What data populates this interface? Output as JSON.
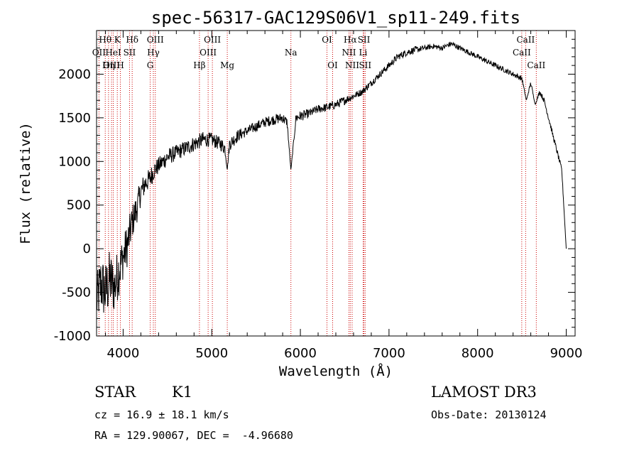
{
  "chart_data": {
    "type": "line",
    "title": "spec-56317-GAC129S06V1_sp11-249.fits",
    "xlabel": "Wavelength (Å)",
    "ylabel": "Flux (relative)",
    "xlim": [
      3700,
      9100
    ],
    "ylim": [
      -1000,
      2500
    ],
    "x_ticks": [
      4000,
      5000,
      6000,
      7000,
      8000,
      9000
    ],
    "y_ticks": [
      -1000,
      -500,
      0,
      500,
      1000,
      1500,
      2000
    ],
    "line_color": "#000000",
    "marker_color": "#cc0000",
    "series": [
      {
        "name": "flux",
        "x": [
          3700,
          3750,
          3800,
          3850,
          3900,
          3950,
          4000,
          4050,
          4100,
          4150,
          4200,
          4250,
          4300,
          4350,
          4400,
          4450,
          4500,
          4600,
          4700,
          4800,
          4900,
          5000,
          5100,
          5150,
          5175,
          5200,
          5300,
          5400,
          5500,
          5600,
          5700,
          5800,
          5850,
          5893,
          5950,
          6000,
          6100,
          6200,
          6300,
          6400,
          6500,
          6600,
          6700,
          6800,
          6900,
          7000,
          7100,
          7200,
          7300,
          7400,
          7500,
          7600,
          7700,
          7800,
          7900,
          8000,
          8100,
          8200,
          8300,
          8400,
          8500,
          8550,
          8600,
          8650,
          8700,
          8750,
          8800,
          8850,
          8900,
          8950,
          9000
        ],
        "y": [
          -600,
          -400,
          -500,
          -350,
          -450,
          -250,
          -100,
          50,
          300,
          450,
          650,
          750,
          800,
          900,
          950,
          1000,
          1050,
          1100,
          1150,
          1200,
          1250,
          1250,
          1200,
          1150,
          900,
          1200,
          1300,
          1350,
          1400,
          1450,
          1480,
          1500,
          1450,
          900,
          1500,
          1520,
          1550,
          1600,
          1620,
          1650,
          1700,
          1750,
          1800,
          1900,
          2000,
          2100,
          2200,
          2250,
          2280,
          2300,
          2320,
          2300,
          2350,
          2300,
          2250,
          2200,
          2150,
          2100,
          2050,
          2000,
          1950,
          1700,
          1900,
          1650,
          1800,
          1700,
          1500,
          1300,
          1100,
          900,
          0
        ],
        "noise": [
          300,
          350,
          350,
          350,
          300,
          300,
          250,
          250,
          200,
          180,
          150,
          130,
          120,
          110,
          100,
          100,
          100,
          90,
          90,
          90,
          90,
          80,
          80,
          80,
          0,
          80,
          70,
          60,
          60,
          60,
          60,
          60,
          50,
          0,
          60,
          60,
          50,
          50,
          50,
          50,
          50,
          40,
          40,
          40,
          40,
          40,
          40,
          40,
          40,
          30,
          30,
          30,
          30,
          30,
          30,
          30,
          30,
          30,
          30,
          30,
          30,
          0,
          30,
          0,
          30,
          30,
          30,
          30,
          30,
          30,
          0
        ]
      }
    ],
    "annotations": [
      {
        "label": "Hθ",
        "wavelength": 3798,
        "row": 1
      },
      {
        "label": "OII",
        "wavelength": 3727,
        "row": 2
      },
      {
        "label": "OIII",
        "wavelength": 3869,
        "row": 3
      },
      {
        "label": "K",
        "wavelength": 3934,
        "row": 1
      },
      {
        "label": "HeI",
        "wavelength": 3889,
        "row": 2
      },
      {
        "label": "Hη",
        "wavelength": 3835,
        "row": 3
      },
      {
        "label": "SII",
        "wavelength": 4072,
        "row": 2
      },
      {
        "label": "H",
        "wavelength": 3969,
        "row": 3
      },
      {
        "label": "Hδ",
        "wavelength": 4102,
        "row": 1
      },
      {
        "label": "OIII",
        "wavelength": 4363,
        "row": 1
      },
      {
        "label": "Hγ",
        "wavelength": 4341,
        "row": 2
      },
      {
        "label": "G",
        "wavelength": 4305,
        "row": 3
      },
      {
        "label": "Hβ",
        "wavelength": 4861,
        "row": 3
      },
      {
        "label": "OIII",
        "wavelength": 5007,
        "row": 1
      },
      {
        "label": "OIII",
        "wavelength": 4959,
        "row": 2
      },
      {
        "label": "Mg",
        "wavelength": 5175,
        "row": 3
      },
      {
        "label": "Na",
        "wavelength": 5893,
        "row": 2
      },
      {
        "label": "OI",
        "wavelength": 6300,
        "row": 1
      },
      {
        "label": "OI",
        "wavelength": 6364,
        "row": 3
      },
      {
        "label": "Hα",
        "wavelength": 6563,
        "row": 1
      },
      {
        "label": "NII",
        "wavelength": 6548,
        "row": 2
      },
      {
        "label": "NII",
        "wavelength": 6584,
        "row": 3
      },
      {
        "label": "SII",
        "wavelength": 6717,
        "row": 1
      },
      {
        "label": "Li",
        "wavelength": 6708,
        "row": 2
      },
      {
        "label": "SII",
        "wavelength": 6731,
        "row": 3
      },
      {
        "label": "CaII",
        "wavelength": 8542,
        "row": 1
      },
      {
        "label": "CaII",
        "wavelength": 8498,
        "row": 2
      },
      {
        "label": "CaII",
        "wavelength": 8662,
        "row": 3
      }
    ]
  },
  "info": {
    "object_class": "STAR",
    "subclass": "K1",
    "survey": "LAMOST DR3",
    "redshift_line": "cz = 16.9 ± 18.1 km/s",
    "obs_date_line": "Obs-Date: 20130124",
    "coords_line": "RA = 129.90067, DEC =  -4.96680"
  }
}
